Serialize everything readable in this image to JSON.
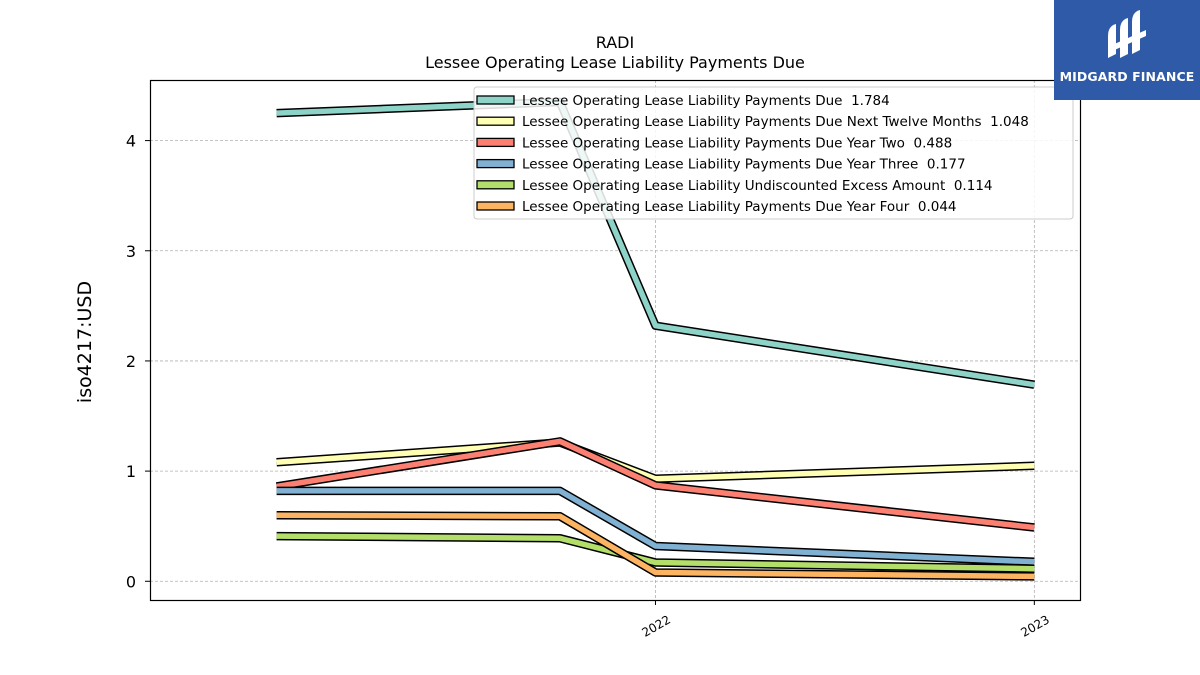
{
  "chart_data": {
    "type": "line",
    "title": "RADI",
    "subtitle": "Lessee Operating Lease Liability Payments Due",
    "xlabel": "",
    "ylabel": "iso4217:USD",
    "x": [
      "2021-01-01",
      "2021-04-01",
      "2021-07-01",
      "2022-01-01",
      "2022-04-01",
      "2022-07-01",
      "2022-10-01",
      "2023-01-01"
    ],
    "x_ticks": [
      "2022-01-01",
      "2023-01-01"
    ],
    "x_tick_labels": [
      "2022",
      "2023"
    ],
    "y_ticks": [
      0,
      1,
      2,
      3,
      4
    ],
    "ylim": [
      -0.17,
      4.55
    ],
    "grid": true,
    "legend_position": "top-right",
    "series": [
      {
        "name": "Lessee Operating Lease Liability Payments Due",
        "legend_value": "1.784",
        "color": "#8dd3c7",
        "x": [
          "2021-01-01",
          "2021-10-01",
          "2022-01-01",
          "2023-01-01"
        ],
        "values": [
          4.25,
          4.35,
          2.32,
          1.784
        ]
      },
      {
        "name": "Lessee Operating Lease Liability Payments Due Next Twelve Months",
        "legend_value": "1.048",
        "color": "#ffffb3",
        "x": [
          "2021-01-01",
          "2021-10-01",
          "2022-01-01",
          "2023-01-01"
        ],
        "values": [
          1.08,
          1.26,
          0.93,
          1.048
        ]
      },
      {
        "name": "Lessee Operating Lease Liability Payments Due Year Two",
        "legend_value": "0.488",
        "color": "#fb8072",
        "x": [
          "2021-01-01",
          "2021-10-01",
          "2022-01-01",
          "2023-01-01"
        ],
        "values": [
          0.86,
          1.27,
          0.87,
          0.488
        ]
      },
      {
        "name": "Lessee Operating Lease Liability Payments Due Year Three",
        "legend_value": "0.177",
        "color": "#80b1d3",
        "x": [
          "2021-01-01",
          "2021-10-01",
          "2022-01-01",
          "2023-01-01"
        ],
        "values": [
          0.82,
          0.82,
          0.32,
          0.177
        ]
      },
      {
        "name": "Lessee Operating Lease Liability Undiscounted Excess Amount",
        "legend_value": "0.114",
        "color": "#b3de69",
        "x": [
          "2021-01-01",
          "2021-10-01",
          "2022-01-01",
          "2023-01-01"
        ],
        "values": [
          0.41,
          0.39,
          0.17,
          0.114
        ]
      },
      {
        "name": "Lessee Operating Lease Liability Payments Due Year Four",
        "legend_value": "0.044",
        "color": "#fdb462",
        "x": [
          "2021-01-01",
          "2021-10-01",
          "2022-01-01",
          "2023-01-01"
        ],
        "values": [
          0.6,
          0.59,
          0.08,
          0.044
        ]
      }
    ]
  },
  "logo": {
    "name": "MIDGARD FINANCE",
    "color": "#2f5aa8"
  }
}
